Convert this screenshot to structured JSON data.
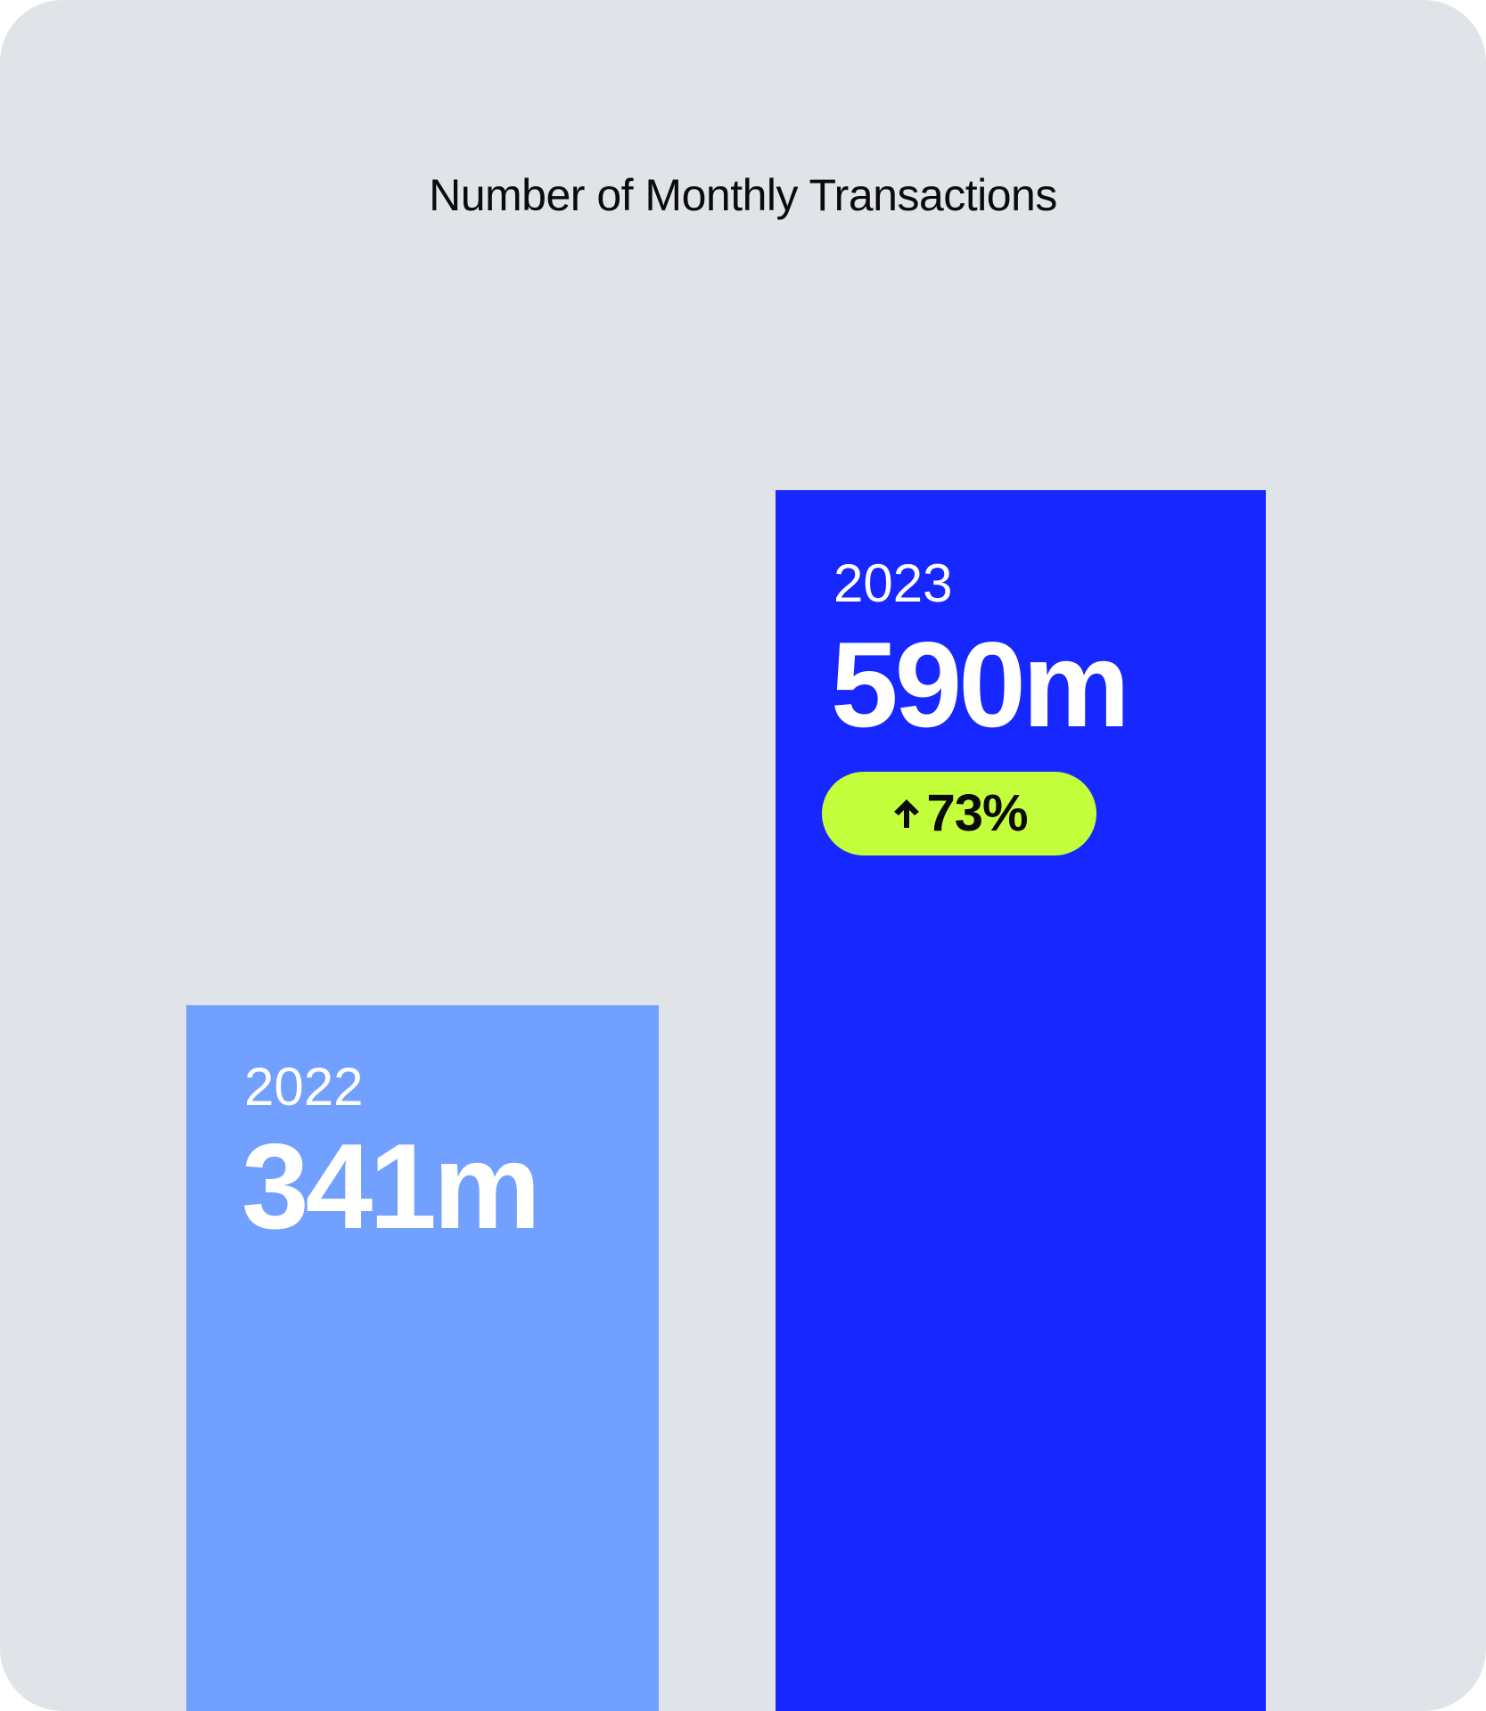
{
  "chart_data": {
    "type": "bar",
    "title": "Number of Monthly Transactions",
    "categories": [
      "2022",
      "2023"
    ],
    "values": [
      341,
      590
    ],
    "value_labels": [
      "341m",
      "590m"
    ],
    "unit": "m",
    "xlabel": "",
    "ylabel": "",
    "grid": false,
    "colors": [
      "#72a0ff",
      "#1628ff"
    ],
    "annotations": [
      {
        "category": "2023",
        "text": "73%",
        "icon": "arrow-up-icon",
        "background": "#c4ff3b"
      }
    ]
  },
  "colors": {
    "background": "#e0e3e8",
    "title_text": "#0b0b0b",
    "label_text": "#ffffff"
  }
}
